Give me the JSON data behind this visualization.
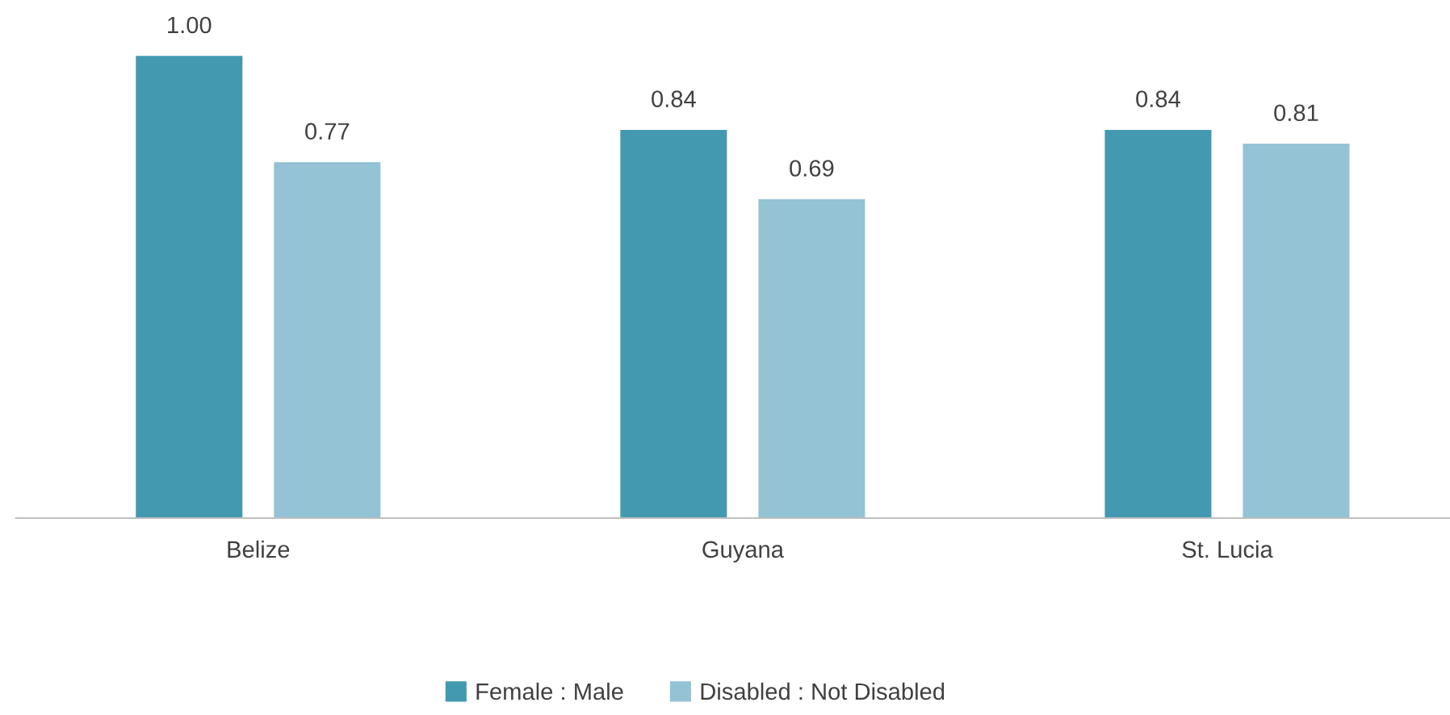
{
  "chart_data": {
    "type": "bar",
    "categories": [
      "Belize",
      "Guyana",
      "St. Lucia"
    ],
    "series": [
      {
        "name": "Female : Male",
        "color": "#4399b0",
        "values": [
          1.0,
          0.84,
          0.84
        ],
        "value_labels": [
          "1.00",
          "0.84",
          "0.84"
        ]
      },
      {
        "name": "Disabled : Not Disabled",
        "color": "#93c3d4",
        "values": [
          0.77,
          0.69,
          0.81
        ],
        "value_labels": [
          "0.77",
          "0.69",
          "0.81"
        ]
      }
    ],
    "grid": false,
    "legend": "bottom"
  }
}
